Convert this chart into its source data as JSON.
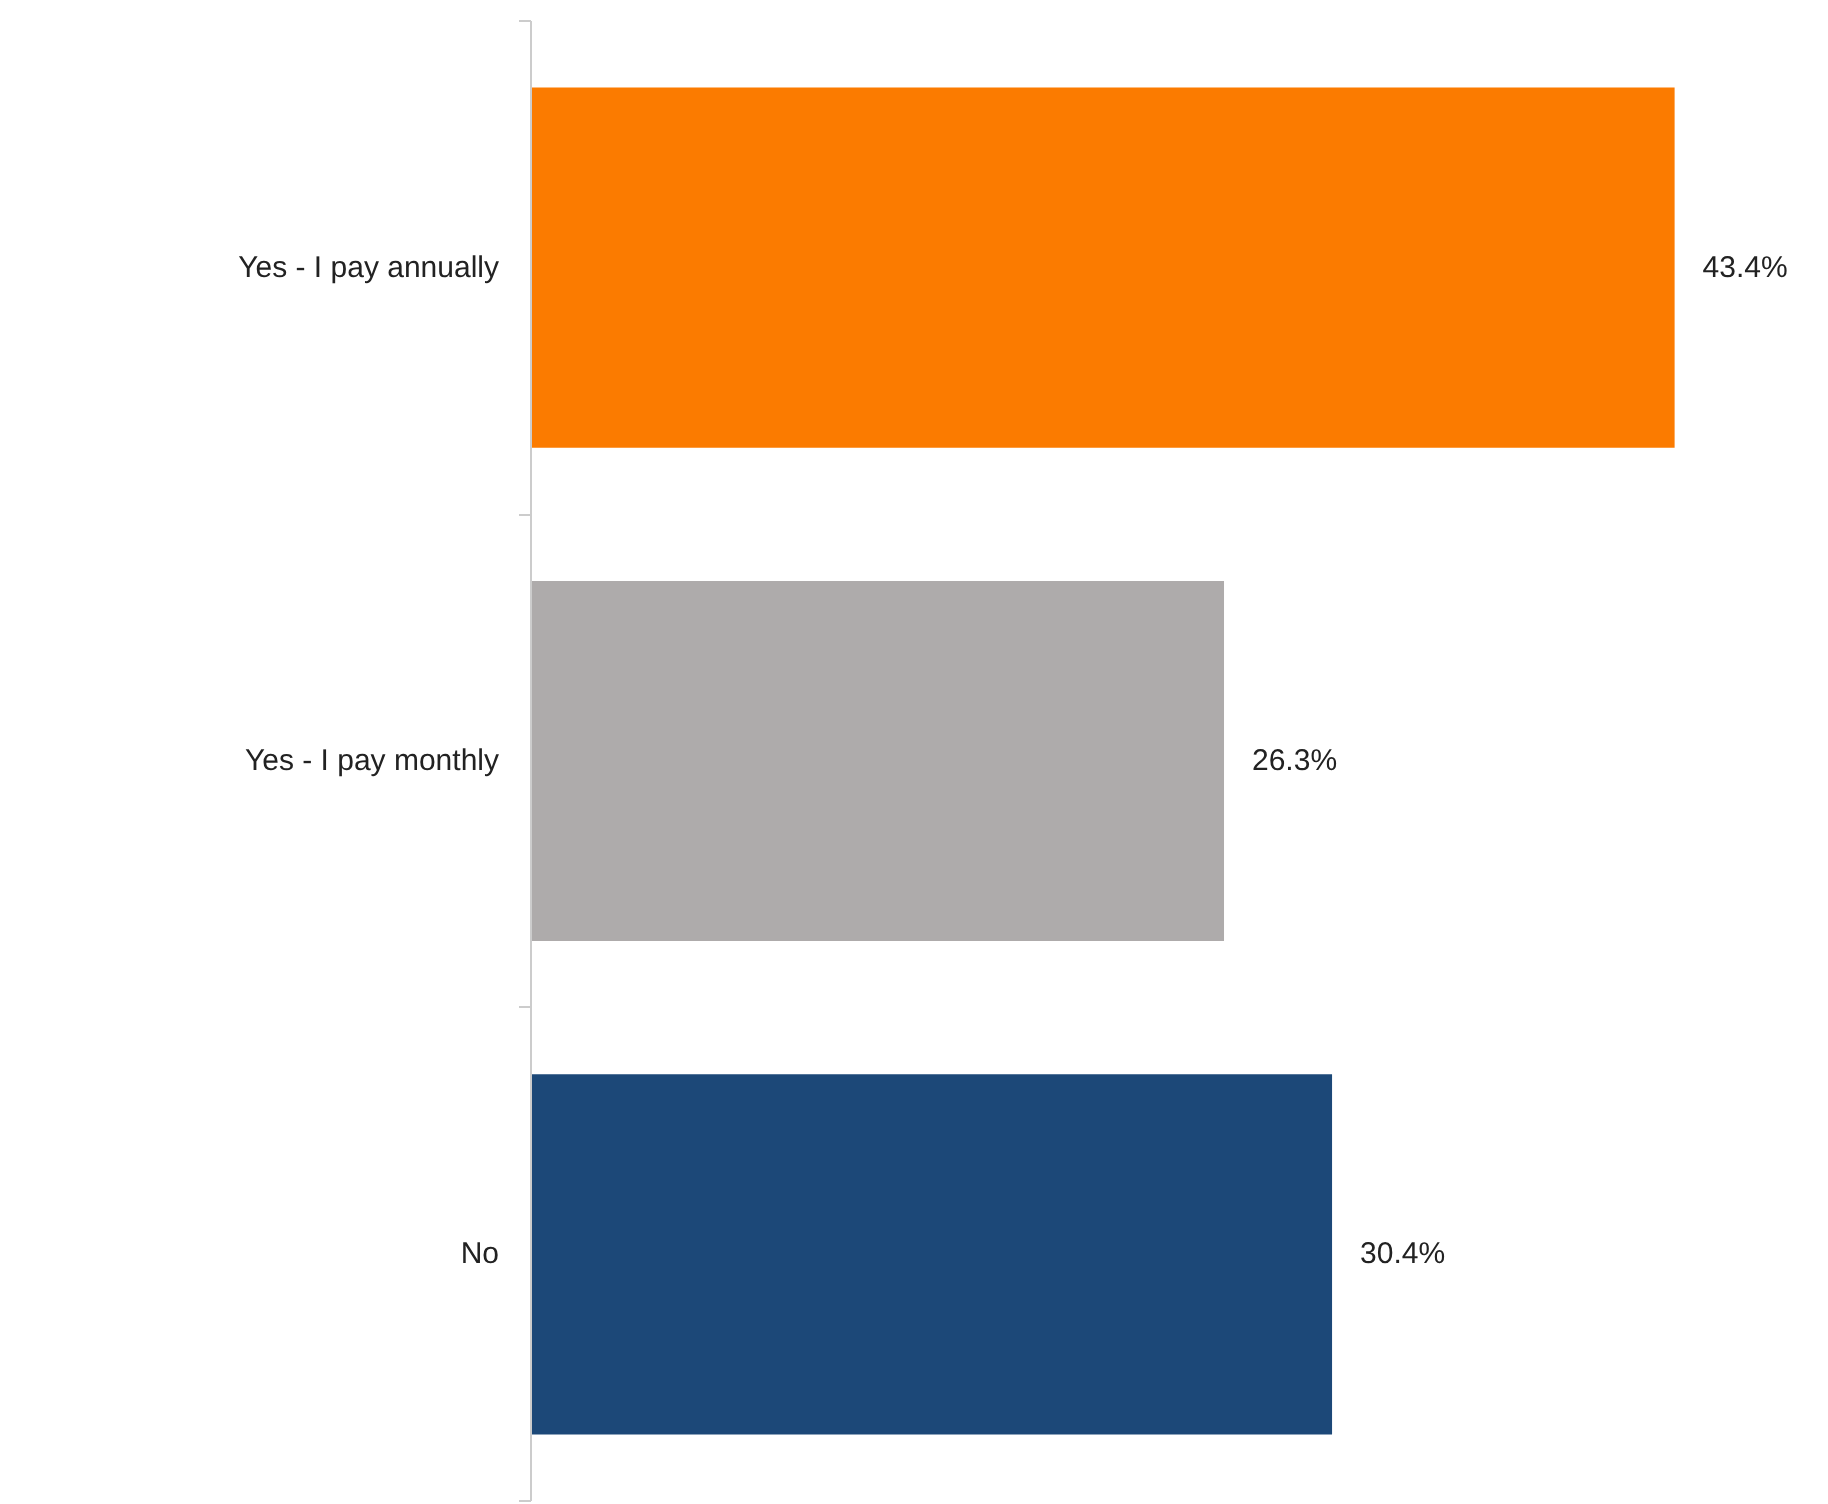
{
  "chart_data": {
    "type": "bar",
    "orientation": "horizontal",
    "categories": [
      "Yes - I pay annually",
      "Yes - I pay monthly",
      "No"
    ],
    "values": [
      43.4,
      26.3,
      30.4
    ],
    "colors": [
      "#fb7b00",
      "#aeabab",
      "#1c4878"
    ],
    "value_labels": [
      "43.4%",
      "26.3%",
      "30.4%"
    ],
    "grid": false
  }
}
